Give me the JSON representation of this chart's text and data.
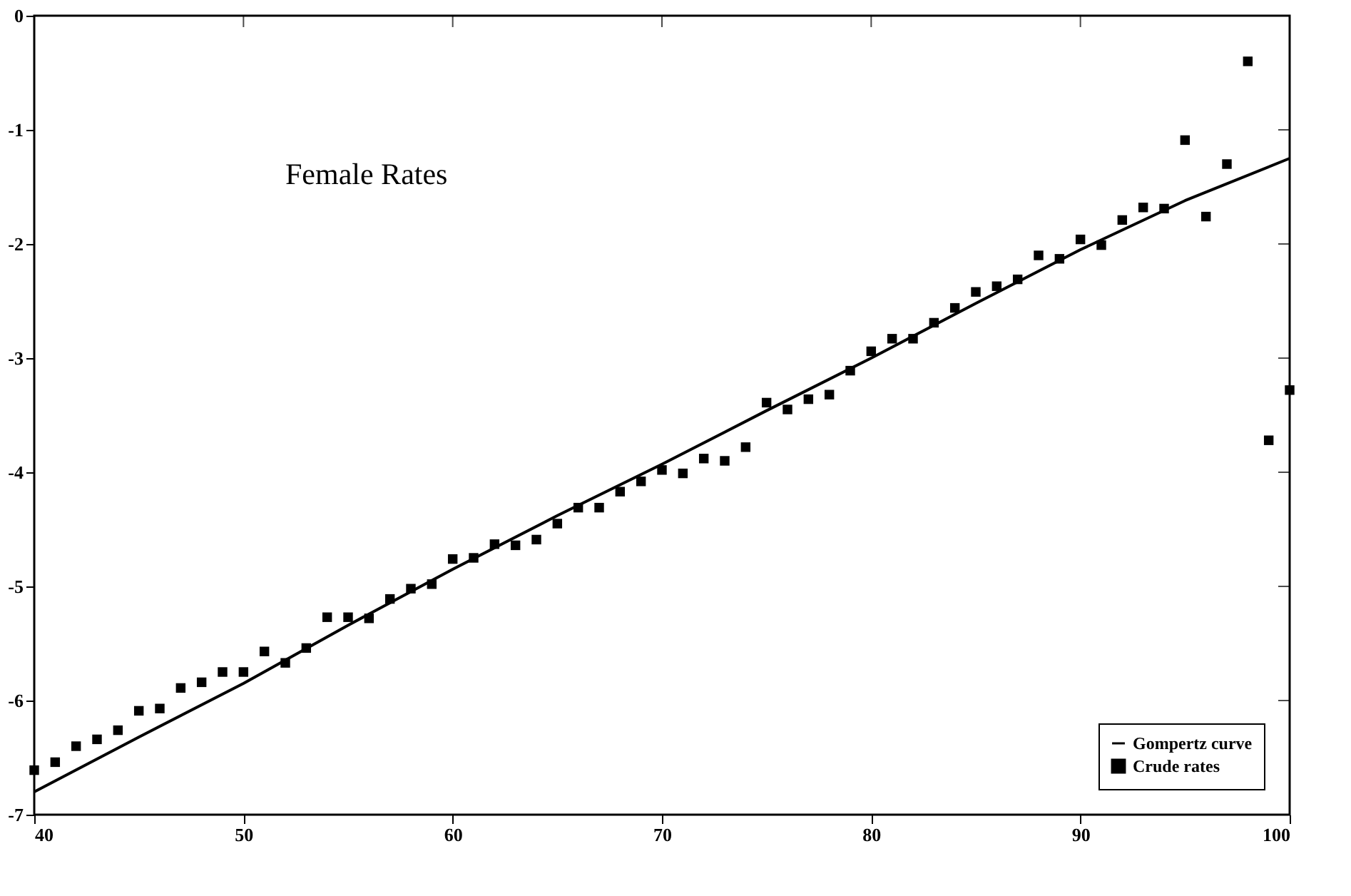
{
  "chart_data": {
    "type": "scatter",
    "annotations": [
      "Female Rates"
    ],
    "xlim": [
      40,
      100
    ],
    "xticks": [
      40,
      50,
      60,
      70,
      80,
      90,
      100
    ],
    "ylim": [
      -7,
      0
    ],
    "yticks": [
      -7,
      -6,
      -5,
      -4,
      -3,
      -2,
      -1,
      0
    ],
    "grid": false,
    "legend": "bottom right",
    "series": [
      {
        "name": "Gompertz curve",
        "type": "line",
        "color": "#000000",
        "line_style": "solid",
        "marker": "none",
        "x": [
          40,
          45,
          50,
          55,
          60,
          65,
          70,
          75,
          80,
          85,
          90,
          95,
          100
        ],
        "values": [
          -6.8,
          -6.32,
          -5.85,
          -5.34,
          -4.85,
          -4.38,
          -3.93,
          -3.46,
          -3.0,
          -2.52,
          -2.05,
          -1.62,
          -1.25
        ]
      },
      {
        "name": "Crude rates",
        "color": "#000000",
        "marker": "square",
        "x": [
          40,
          41,
          42,
          43,
          44,
          45,
          46,
          47,
          48,
          49,
          50,
          51,
          52,
          53,
          54,
          55,
          56,
          57,
          58,
          59,
          60,
          61,
          62,
          63,
          64,
          65,
          66,
          67,
          68,
          69,
          70,
          71,
          72,
          73,
          74,
          75,
          76,
          77,
          78,
          79,
          80,
          81,
          82,
          83,
          84,
          85,
          86,
          87,
          88,
          89,
          90,
          91,
          92,
          93,
          94,
          95,
          96,
          97,
          98,
          99,
          100
        ],
        "values": [
          -6.61,
          -6.54,
          -6.4,
          -6.34,
          -6.26,
          -6.09,
          -6.07,
          -5.89,
          -5.84,
          -5.75,
          -5.75,
          -5.57,
          -5.67,
          -5.54,
          -5.27,
          -5.27,
          -5.28,
          -5.11,
          -5.02,
          -4.98,
          -4.76,
          -4.75,
          -4.63,
          -4.64,
          -4.59,
          -4.45,
          -4.31,
          -4.31,
          -4.17,
          -4.08,
          -3.98,
          -4.01,
          -3.88,
          -3.9,
          -3.78,
          -3.39,
          -3.45,
          -3.36,
          -3.32,
          -3.11,
          -2.94,
          -2.83,
          -2.83,
          -2.69,
          -2.56,
          -2.42,
          -2.37,
          -2.31,
          -2.1,
          -2.13,
          -1.96,
          -2.01,
          -1.79,
          -1.68,
          -1.69,
          -1.09,
          -1.76,
          -1.3,
          -0.4,
          -3.72,
          -3.28
        ]
      }
    ]
  }
}
